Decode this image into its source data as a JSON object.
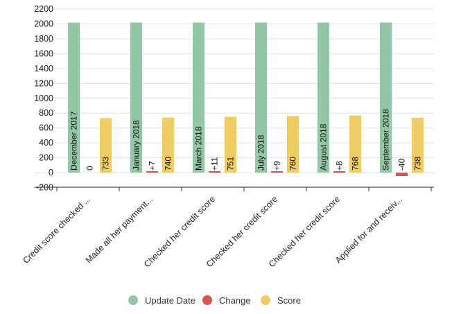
{
  "chart_data": {
    "type": "bar",
    "categories": [
      "Credit score checked ...",
      "Made all her payment...",
      "Checked her credit score",
      "Checked her credit score",
      "Checked her credit score",
      "Applied for and receiv..."
    ],
    "yticks": [
      2200,
      2000,
      1800,
      1600,
      1400,
      1200,
      1000,
      800,
      600,
      400,
      200,
      0,
      -200
    ],
    "ylim": [
      -250,
      2200
    ],
    "grid": true,
    "legend_position": "bottom",
    "series": [
      {
        "name": "Update Date",
        "color": "#93c6a4",
        "values": [
          2017,
          2018,
          2018,
          2018,
          2018,
          2018
        ],
        "labels": [
          "December 2017",
          "January 2018",
          "March 2018",
          "July 2018",
          "August 2018",
          "September 2018"
        ]
      },
      {
        "name": "Change",
        "color": "#d9534f",
        "values": [
          0,
          7,
          11,
          9,
          8,
          -40
        ],
        "labels": [
          "0",
          "+7",
          "+11",
          "+9",
          "+8",
          "-40"
        ]
      },
      {
        "name": "Score",
        "color": "#f0cd64",
        "values": [
          733,
          740,
          751,
          760,
          768,
          738
        ],
        "labels": [
          "733",
          "740",
          "751",
          "760",
          "768",
          "738"
        ]
      }
    ]
  }
}
